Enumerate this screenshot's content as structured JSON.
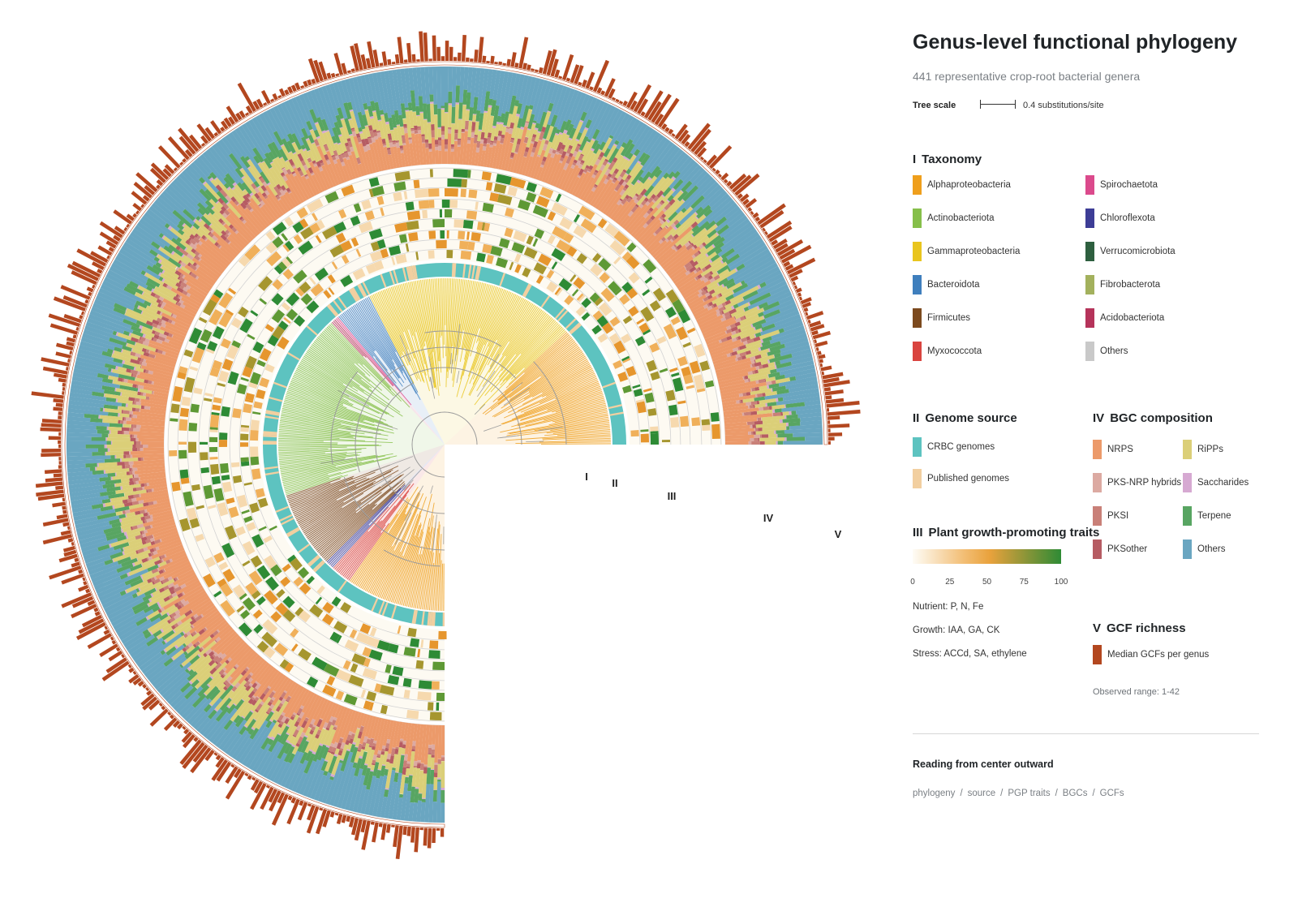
{
  "title": "Genus-level functional phylogeny",
  "subtitle": "441 representative crop-root bacterial genera",
  "tree_scale": {
    "label": "Tree scale",
    "text": "0.4 substitutions/site"
  },
  "ring_labels": [
    "I",
    "II",
    "III",
    "IV",
    "V"
  ],
  "sections": {
    "taxonomy": {
      "num": "I",
      "title": "Taxonomy",
      "items": [
        {
          "label": "Alphaproteobacteria",
          "color": "#ef9f1c"
        },
        {
          "label": "Actinobacteriota",
          "color": "#86bf4a"
        },
        {
          "label": "Gammaproteobacteria",
          "color": "#e9c51e"
        },
        {
          "label": "Bacteroidota",
          "color": "#3f7fbd"
        },
        {
          "label": "Firmicutes",
          "color": "#7c4a1e"
        },
        {
          "label": "Myxococcota",
          "color": "#d9443f"
        },
        {
          "label": "Spirochaetota",
          "color": "#db4a8c"
        },
        {
          "label": "Chloroflexota",
          "color": "#3d3d96"
        },
        {
          "label": "Verrucomicrobiota",
          "color": "#2e5f3f"
        },
        {
          "label": "Fibrobacterota",
          "color": "#a3b15d"
        },
        {
          "label": "Acidobacteriota",
          "color": "#b5335a"
        },
        {
          "label": "Others",
          "color": "#c9c9c9"
        }
      ]
    },
    "genome_source": {
      "num": "II",
      "title": "Genome source",
      "items": [
        {
          "label": "CRBC genomes",
          "color": "#5dc3c0"
        },
        {
          "label": "Published genomes",
          "color": "#f2cfa0"
        }
      ]
    },
    "pgp_traits": {
      "num": "III",
      "title": "Plant growth-promoting traits",
      "ticks": [
        "0",
        "25",
        "50",
        "75",
        "100"
      ],
      "lines": [
        "Nutrient: P, N, Fe",
        "Growth: IAA, GA, CK",
        "Stress: ACCd, SA, ethylene"
      ]
    },
    "bgc": {
      "num": "IV",
      "title": "BGC composition",
      "items": [
        {
          "label": "NRPS",
          "color": "#ec9a6a"
        },
        {
          "label": "PKS-NRP hybrids",
          "color": "#dcaaa2"
        },
        {
          "label": "PKSI",
          "color": "#c98078"
        },
        {
          "label": "PKSother",
          "color": "#b65c63"
        },
        {
          "label": "RiPPs",
          "color": "#dbcf78"
        },
        {
          "label": "Saccharides",
          "color": "#d6a9d2"
        },
        {
          "label": "Terpene",
          "color": "#58a562"
        },
        {
          "label": "Others",
          "color": "#6aa6c1"
        }
      ]
    },
    "gcf": {
      "num": "V",
      "title": "GCF richness",
      "item": {
        "label": "Median GCFs per genus",
        "color": "#b3471f"
      },
      "range_note": "Observed range: 1-42"
    }
  },
  "reading": {
    "title": "Reading from center outward",
    "steps": [
      "phylogeny",
      "source",
      "PGP traits",
      "BGCs",
      "GCFs"
    ]
  },
  "chart_data": {
    "type": "circular-phylogeny",
    "n_genera": 441,
    "arc_degrees": 270,
    "rings": {
      "I": "taxonomy (clade colours)",
      "II": "genome source",
      "III": "plant growth-promoting traits (heatmap, 0-100)",
      "IV": "BGC composition (stacked proportions)",
      "V": "GCF richness (bar height)"
    },
    "clades": [
      {
        "taxon": "Alphaproteobacteria",
        "from": 0,
        "to": 43
      },
      {
        "taxon": "Gammaproteobacteria",
        "from": 43,
        "to": 117
      },
      {
        "taxon": "Bacteroidota",
        "from": 117,
        "to": 130
      },
      {
        "taxon": "Spirochaetota",
        "from": 130,
        "to": 131
      },
      {
        "taxon": "Acidobacteriota",
        "from": 131,
        "to": 133
      },
      {
        "taxon": "Actinobacteriota",
        "from": 133,
        "to": 198
      },
      {
        "taxon": "Firmicutes",
        "from": 198,
        "to": 225
      },
      {
        "taxon": "Chloroflexota",
        "from": 225,
        "to": 228
      },
      {
        "taxon": "Myxococcota",
        "from": 228,
        "to": 235
      },
      {
        "taxon": "Alphaproteobacteria",
        "from": 235,
        "to": 270
      }
    ],
    "gcf_range": [
      1,
      42
    ]
  }
}
